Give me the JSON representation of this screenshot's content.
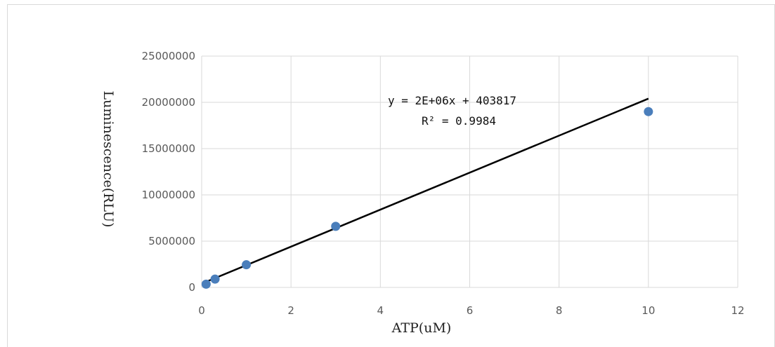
{
  "chart_data": {
    "type": "scatter",
    "xlabel": "ATP(uM)",
    "ylabel": "Luminescence(RLU)",
    "xlim": [
      0,
      12
    ],
    "ylim": [
      0,
      25000000
    ],
    "x_ticks": [
      0,
      2,
      4,
      6,
      8,
      10,
      12
    ],
    "y_ticks": [
      0,
      5000000,
      10000000,
      15000000,
      20000000,
      25000000
    ],
    "grid": true,
    "legend": "none",
    "marker_color": "#4a7ebb",
    "trendline_color": "#000000",
    "series": [
      {
        "x": [
          0.1,
          0.3,
          1,
          3,
          10
        ],
        "y": [
          350000,
          900000,
          2450000,
          6600000,
          19000000
        ]
      }
    ],
    "trendline": {
      "type": "linear",
      "slope": 2000000,
      "intercept": 403817,
      "x_range": [
        0.1,
        10
      ],
      "equation": "y = 2E+06x + 403817",
      "r2_label": "R² = 0.9984"
    }
  }
}
